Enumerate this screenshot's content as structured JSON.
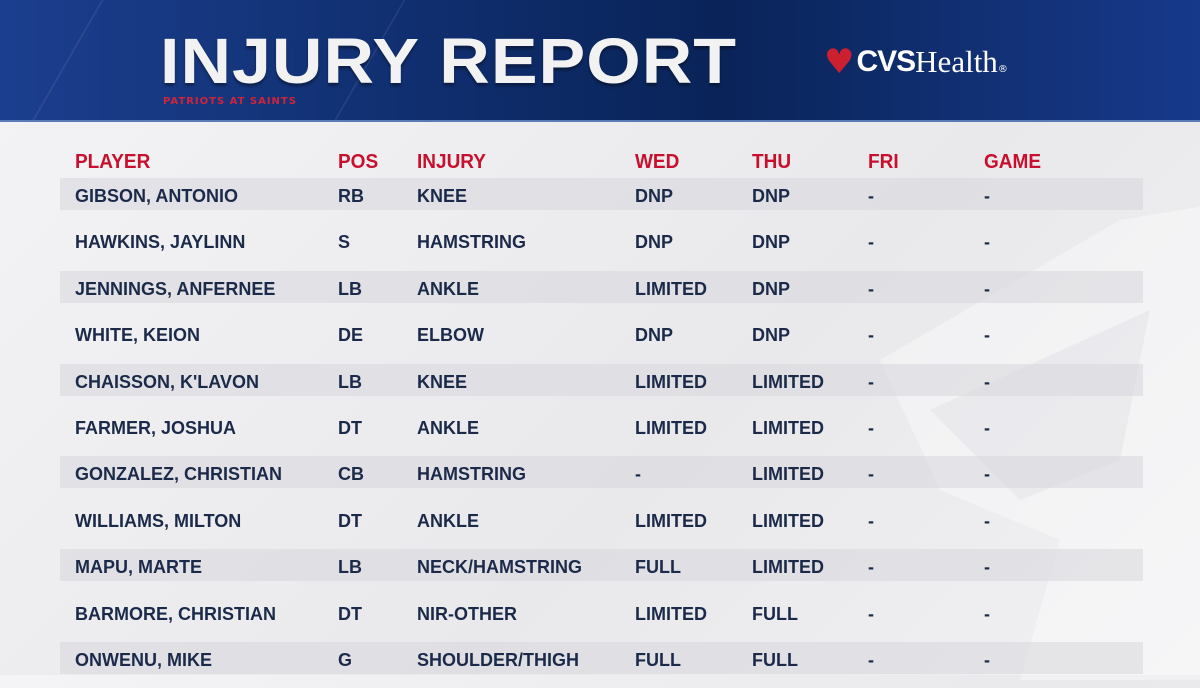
{
  "header": {
    "title": "INJURY REPORT",
    "subtitle": "PATRIOTS AT SAINTS",
    "sponsor": {
      "brand_bold": "CVS",
      "brand_light": "Health",
      "icon": "heart-icon",
      "trademark": "®"
    }
  },
  "colors": {
    "header_blue": "#0d2a66",
    "accent_red": "#c8102e",
    "text_navy": "#1c2a4a"
  },
  "table": {
    "columns": [
      "PLAYER",
      "POS",
      "INJURY",
      "WED",
      "THU",
      "FRI",
      "GAME"
    ],
    "rows": [
      [
        "GIBSON, ANTONIO",
        "RB",
        "KNEE",
        "DNP",
        "DNP",
        "-",
        "-"
      ],
      [
        "HAWKINS, JAYLINN",
        "S",
        "HAMSTRING",
        "DNP",
        "DNP",
        "-",
        "-"
      ],
      [
        "JENNINGS, ANFERNEE",
        "LB",
        "ANKLE",
        "LIMITED",
        "DNP",
        "-",
        "-"
      ],
      [
        "WHITE, KEION",
        "DE",
        "ELBOW",
        "DNP",
        "DNP",
        "-",
        "-"
      ],
      [
        "CHAISSON, K'LAVON",
        "LB",
        "KNEE",
        "LIMITED",
        "LIMITED",
        "-",
        "-"
      ],
      [
        "FARMER, JOSHUA",
        "DT",
        "ANKLE",
        "LIMITED",
        "LIMITED",
        "-",
        "-"
      ],
      [
        "GONZALEZ, CHRISTIAN",
        "CB",
        "HAMSTRING",
        "-",
        "LIMITED",
        "-",
        "-"
      ],
      [
        "WILLIAMS, MILTON",
        "DT",
        "ANKLE",
        "LIMITED",
        "LIMITED",
        "-",
        "-"
      ],
      [
        "MAPU, MARTE",
        "LB",
        "NECK/HAMSTRING",
        "FULL",
        "LIMITED",
        "-",
        "-"
      ],
      [
        "BARMORE, CHRISTIAN",
        "DT",
        "NIR-OTHER",
        "LIMITED",
        "FULL",
        "-",
        "-"
      ],
      [
        "ONWENU, MIKE",
        "G",
        "SHOULDER/THIGH",
        "FULL",
        "FULL",
        "-",
        "-"
      ]
    ]
  }
}
